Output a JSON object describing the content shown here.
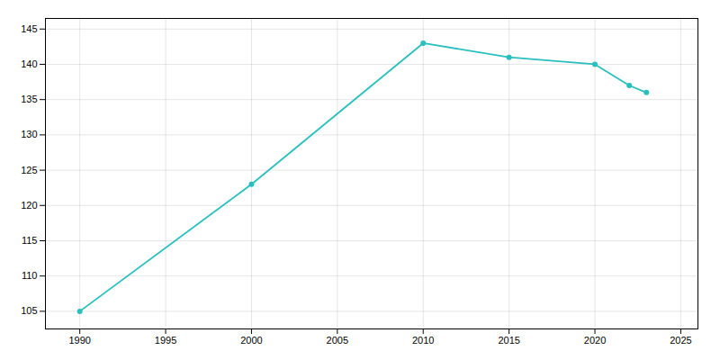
{
  "chart_data": {
    "type": "line",
    "x": [
      1990,
      2000,
      2010,
      2015,
      2020,
      2022,
      2023
    ],
    "values": [
      105,
      123,
      143,
      141,
      140,
      137,
      136
    ],
    "color": "#2abfbf",
    "marker": "circle",
    "xlim": [
      1988,
      2026
    ],
    "ylim": [
      102.5,
      146.5
    ],
    "xticks": [
      1990,
      1995,
      2000,
      2005,
      2010,
      2015,
      2020,
      2025
    ],
    "yticks": [
      105,
      110,
      115,
      120,
      125,
      130,
      135,
      140,
      145
    ],
    "grid": true
  }
}
